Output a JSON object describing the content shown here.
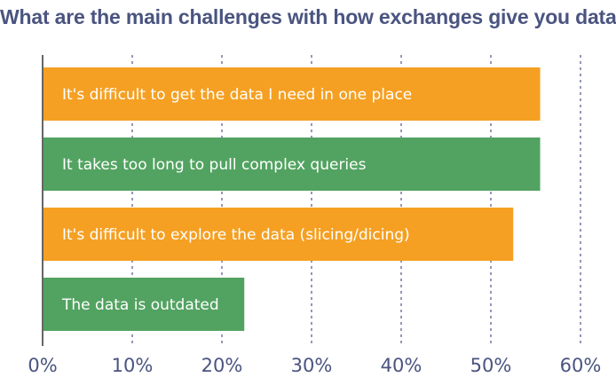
{
  "chart_data": {
    "type": "bar",
    "orientation": "horizontal",
    "title": "What are the main challenges with how exchanges give you data?",
    "categories": [
      "It's difficult to get the data I need in one place",
      "It takes too long to pull complex queries",
      "It's difficult to explore the data (slicing/dicing)",
      "The data is outdated"
    ],
    "values": [
      55.5,
      55.5,
      52.5,
      22.5
    ],
    "bar_colors": [
      "#f5a023",
      "#52a361",
      "#f5a023",
      "#52a361"
    ],
    "xlim": [
      0,
      60
    ],
    "xticks": [
      0,
      10,
      20,
      30,
      40,
      50,
      60
    ],
    "xtick_labels": [
      "0%",
      "10%",
      "20%",
      "30%",
      "40%",
      "50%",
      "60%"
    ],
    "xlabel": "",
    "ylabel": "",
    "grid": true,
    "legend": "none"
  }
}
